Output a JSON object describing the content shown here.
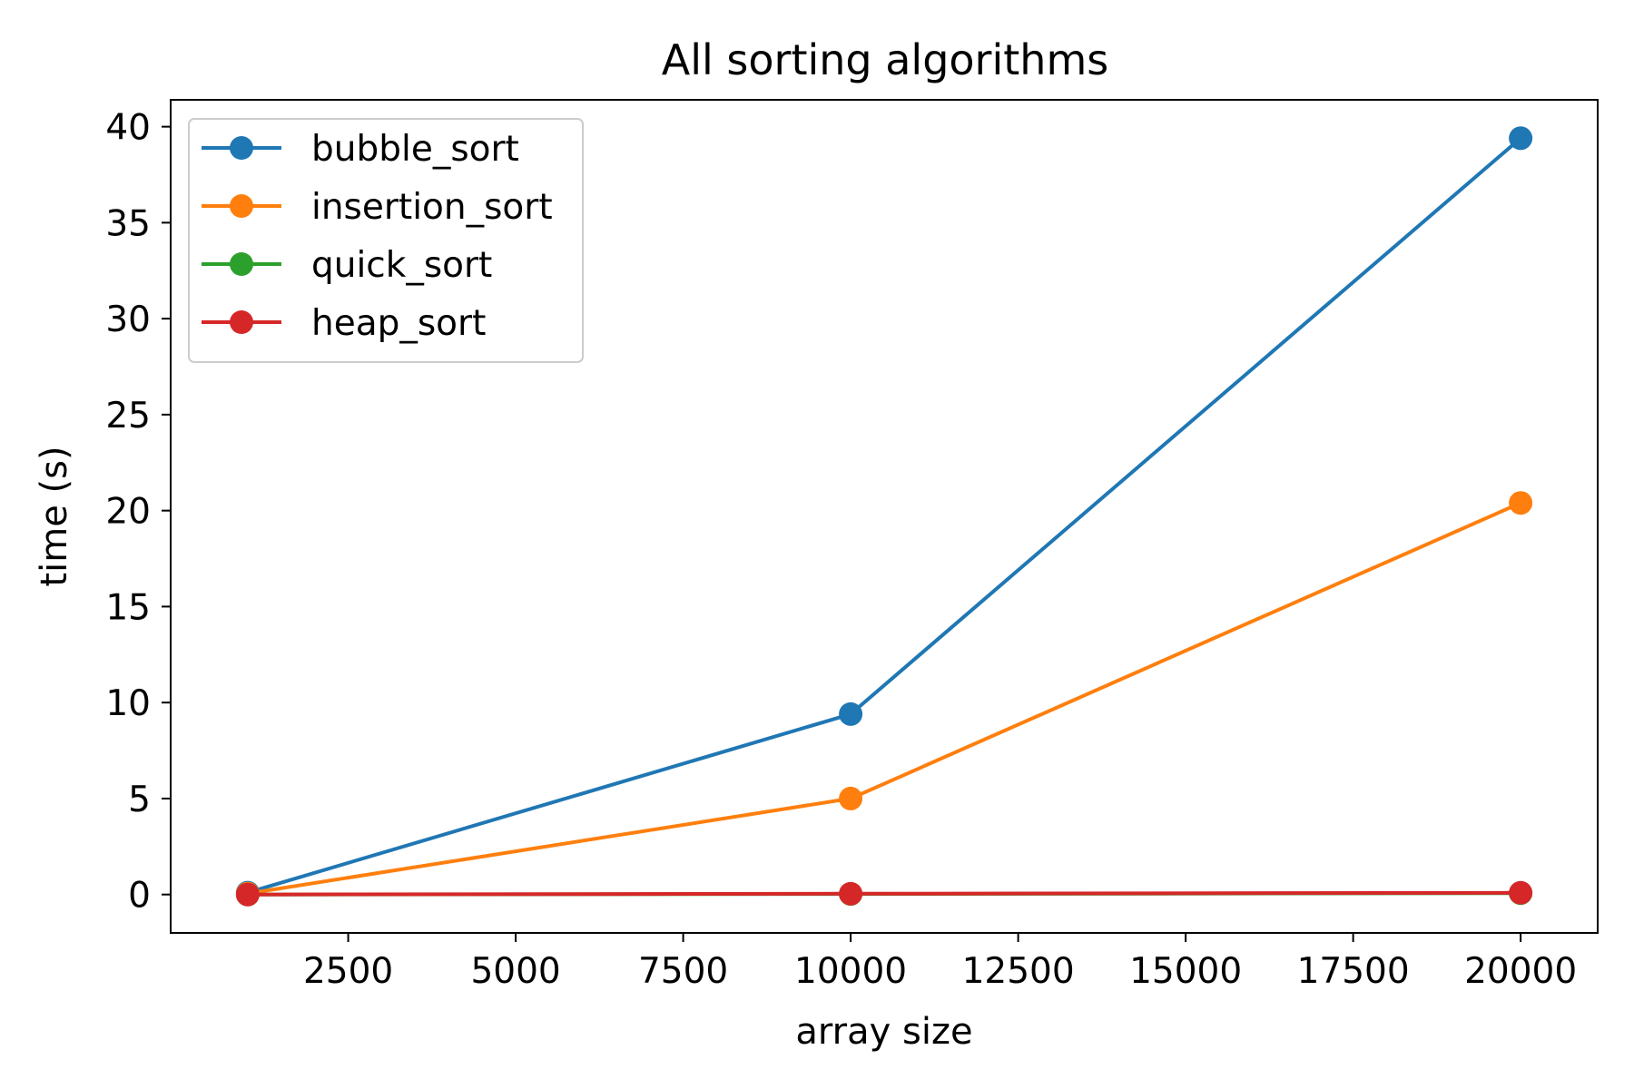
{
  "chart_data": {
    "type": "line",
    "title": "All sorting algorithms",
    "xlabel": "array size",
    "ylabel": "time (s)",
    "x": [
      1000,
      10000,
      20000
    ],
    "xlim": [
      -150,
      21150
    ],
    "ylim": [
      -2,
      41.4
    ],
    "xticks": [
      2500,
      5000,
      7500,
      10000,
      12500,
      15000,
      17500,
      20000
    ],
    "yticks": [
      0,
      5,
      10,
      15,
      20,
      25,
      30,
      35,
      40
    ],
    "xtick_labels": [
      "2500",
      "5000",
      "7500",
      "10000",
      "12500",
      "15000",
      "17500",
      "20000"
    ],
    "ytick_labels": [
      "0",
      "5",
      "10",
      "15",
      "20",
      "25",
      "30",
      "35",
      "40"
    ],
    "grid": false,
    "legend_position": "top-left",
    "markers": true,
    "series": [
      {
        "name": "bubble_sort",
        "color": "#1f77b4",
        "values": [
          0.1,
          9.4,
          39.4
        ]
      },
      {
        "name": "insertion_sort",
        "color": "#ff7f0e",
        "values": [
          0.05,
          5.0,
          20.4
        ]
      },
      {
        "name": "quick_sort",
        "color": "#2ca02c",
        "values": [
          0.0,
          0.03,
          0.07
        ]
      },
      {
        "name": "heap_sort",
        "color": "#d62728",
        "values": [
          0.0,
          0.04,
          0.09
        ]
      }
    ]
  }
}
